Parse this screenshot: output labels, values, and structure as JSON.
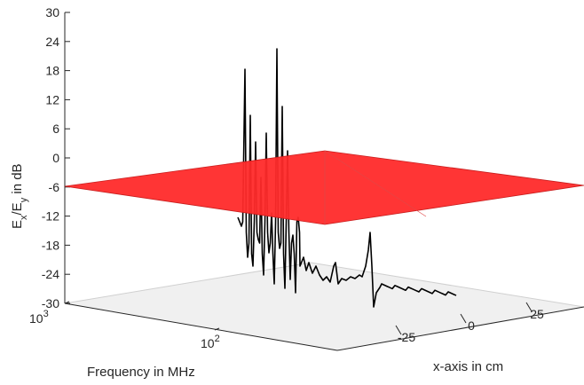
{
  "chart_data": {
    "type": "line",
    "projection": "3d",
    "title": "",
    "xlabel": "Frequency in MHz",
    "ylabel": "x-axis in cm",
    "zlabel": {
      "main": "E",
      "sub1": "x",
      "mid": "/E",
      "sub2": "y",
      "tail": " in dB"
    },
    "z_ticks": [
      "30",
      "24",
      "18",
      "12",
      "6",
      "0",
      "-6",
      "-12",
      "-18",
      "-24",
      "-30"
    ],
    "zlim": [
      -30,
      30
    ],
    "frequency_scale": "log",
    "frequency_ticks": [
      {
        "base": "10",
        "exp": "3"
      },
      {
        "base": "10",
        "exp": "2"
      }
    ],
    "x_position_ticks": [
      "-25",
      "0",
      "25"
    ],
    "threshold_plane": {
      "z_value": -6,
      "color": "#ff2a2a"
    },
    "floor_color": "#f0f0f0",
    "series": [
      {
        "color": "#000000",
        "sharp_peaks_db": [
          22,
          20,
          8,
          4,
          -2,
          2,
          -4,
          0
        ],
        "mid_band_db_range": [
          -26,
          -18
        ],
        "high_band_db_range": [
          -28,
          -26
        ],
        "resonance_peak_db": -14
      }
    ],
    "grid": false
  }
}
